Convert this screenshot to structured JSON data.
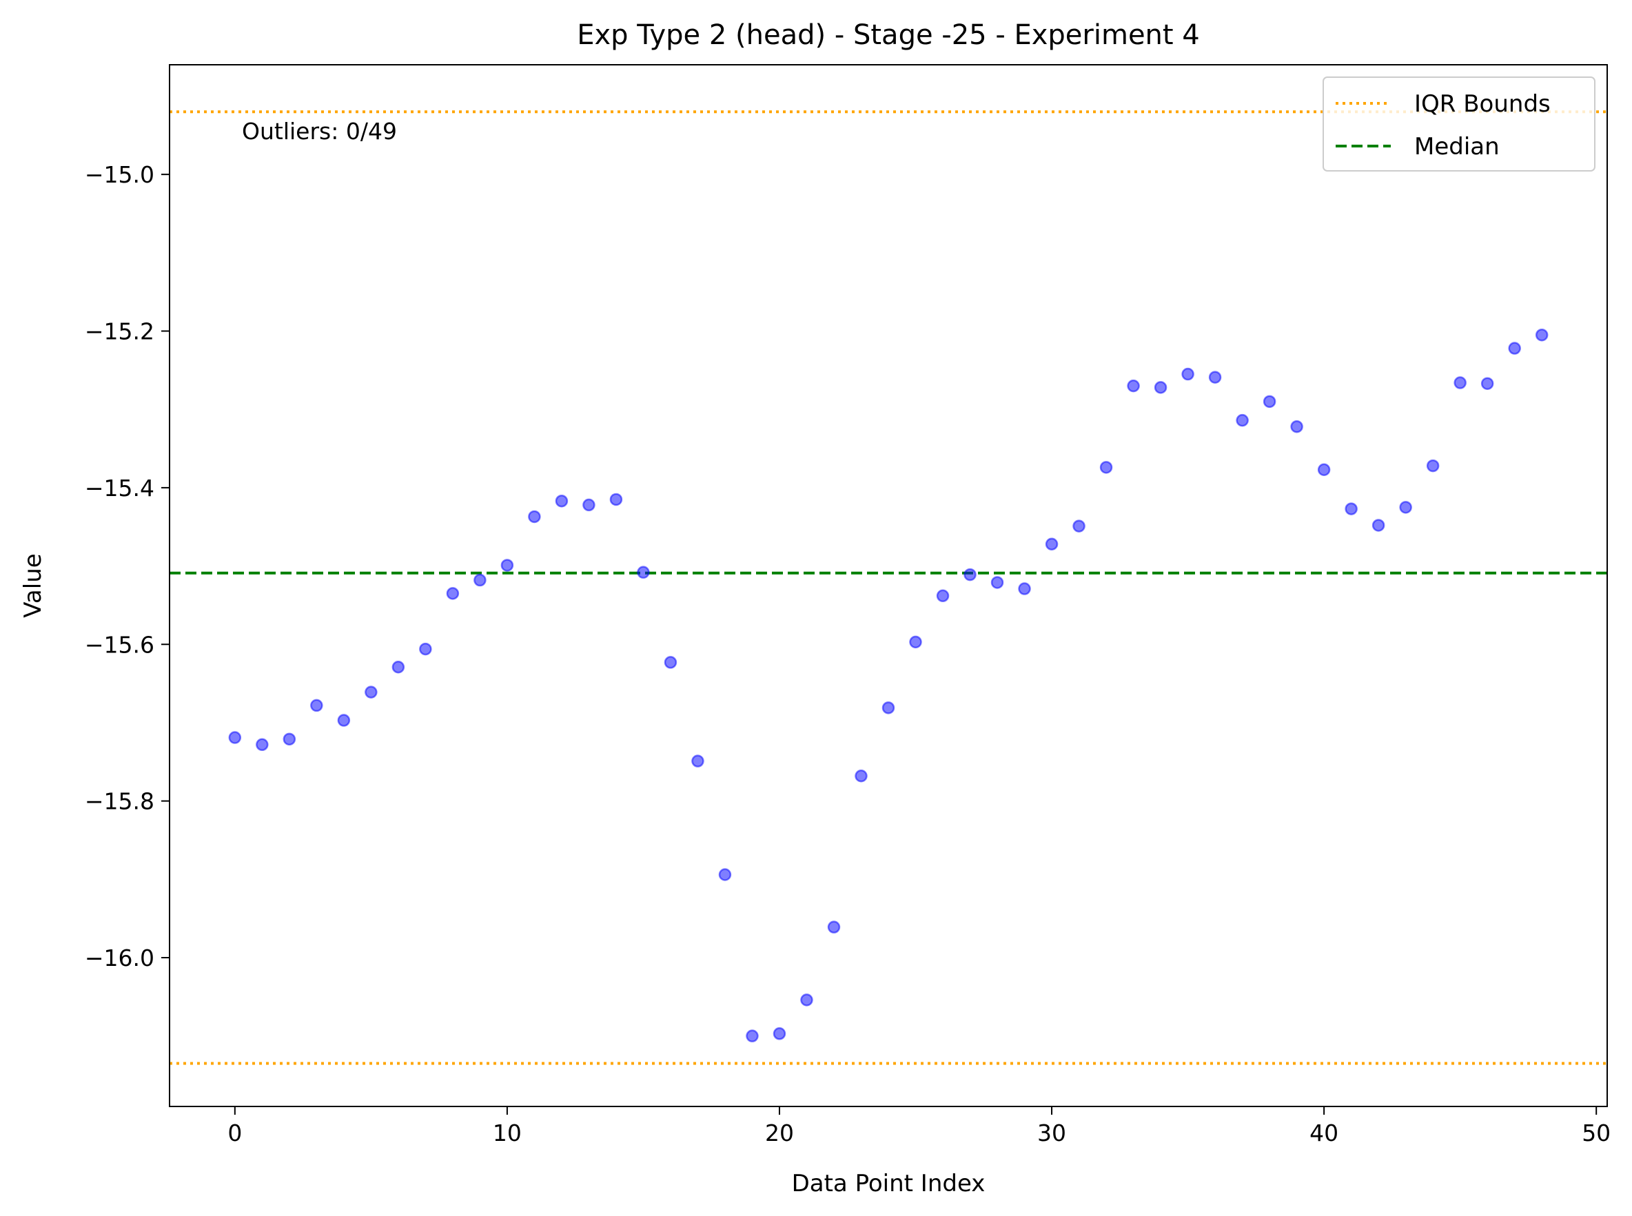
{
  "chart_data": {
    "type": "scatter",
    "title": "Exp Type 2 (head) - Stage -25 - Experiment 4",
    "xlabel": "Data Point Index",
    "ylabel": "Value",
    "xlim": [
      -2.4,
      50.4
    ],
    "ylim": [
      -16.19,
      -14.86
    ],
    "x_ticks": [
      0,
      10,
      20,
      30,
      40,
      50
    ],
    "y_ticks": [
      -15.0,
      -15.2,
      -15.4,
      -15.6,
      -15.8,
      -16.0
    ],
    "x_tick_labels": [
      "0",
      "10",
      "20",
      "30",
      "40",
      "50"
    ],
    "y_tick_labels": [
      "−15.0",
      "−15.2",
      "−15.4",
      "−15.6",
      "−15.8",
      "−16.0"
    ],
    "grid": false,
    "legend_position": "top-right",
    "series": [
      {
        "color": "#0000ff",
        "x": [
          0,
          1,
          2,
          3,
          4,
          5,
          6,
          7,
          8,
          9,
          10,
          11,
          12,
          13,
          14,
          15,
          16,
          17,
          18,
          19,
          20,
          21,
          22,
          23,
          24,
          25,
          26,
          27,
          28,
          29,
          30,
          31,
          32,
          33,
          34,
          35,
          36,
          37,
          38,
          39,
          40,
          41,
          42,
          43,
          44,
          45,
          46,
          47,
          48
        ],
        "y": [
          -15.719,
          -15.728,
          -15.721,
          -15.678,
          -15.697,
          -15.661,
          -15.629,
          -15.606,
          -15.535,
          -15.518,
          -15.499,
          -15.437,
          -15.417,
          -15.422,
          -15.415,
          -15.508,
          -15.623,
          -15.749,
          -15.894,
          -16.1,
          -16.097,
          -16.054,
          -15.961,
          -15.768,
          -15.681,
          -15.597,
          -15.538,
          -15.511,
          -15.521,
          -15.529,
          -15.472,
          -15.449,
          -15.374,
          -15.27,
          -15.272,
          -15.255,
          -15.259,
          -15.314,
          -15.29,
          -15.322,
          -15.377,
          -15.427,
          -15.448,
          -15.425,
          -15.372,
          -15.266,
          -15.267,
          -15.222,
          -15.205
        ]
      }
    ],
    "reference_lines": [
      {
        "name": "IQR Bounds",
        "orientation": "horizontal",
        "values": [
          -14.92,
          -16.135
        ],
        "color": "#ffa500",
        "style": "dotted"
      },
      {
        "name": "Median",
        "orientation": "horizontal",
        "values": [
          -15.509
        ],
        "color": "#008000",
        "style": "dashed"
      }
    ],
    "annotations": [
      {
        "text": "Outliers: 0/49",
        "x": 0.3,
        "y": -14.96
      }
    ],
    "legend": [
      "IQR Bounds",
      "Median"
    ]
  }
}
